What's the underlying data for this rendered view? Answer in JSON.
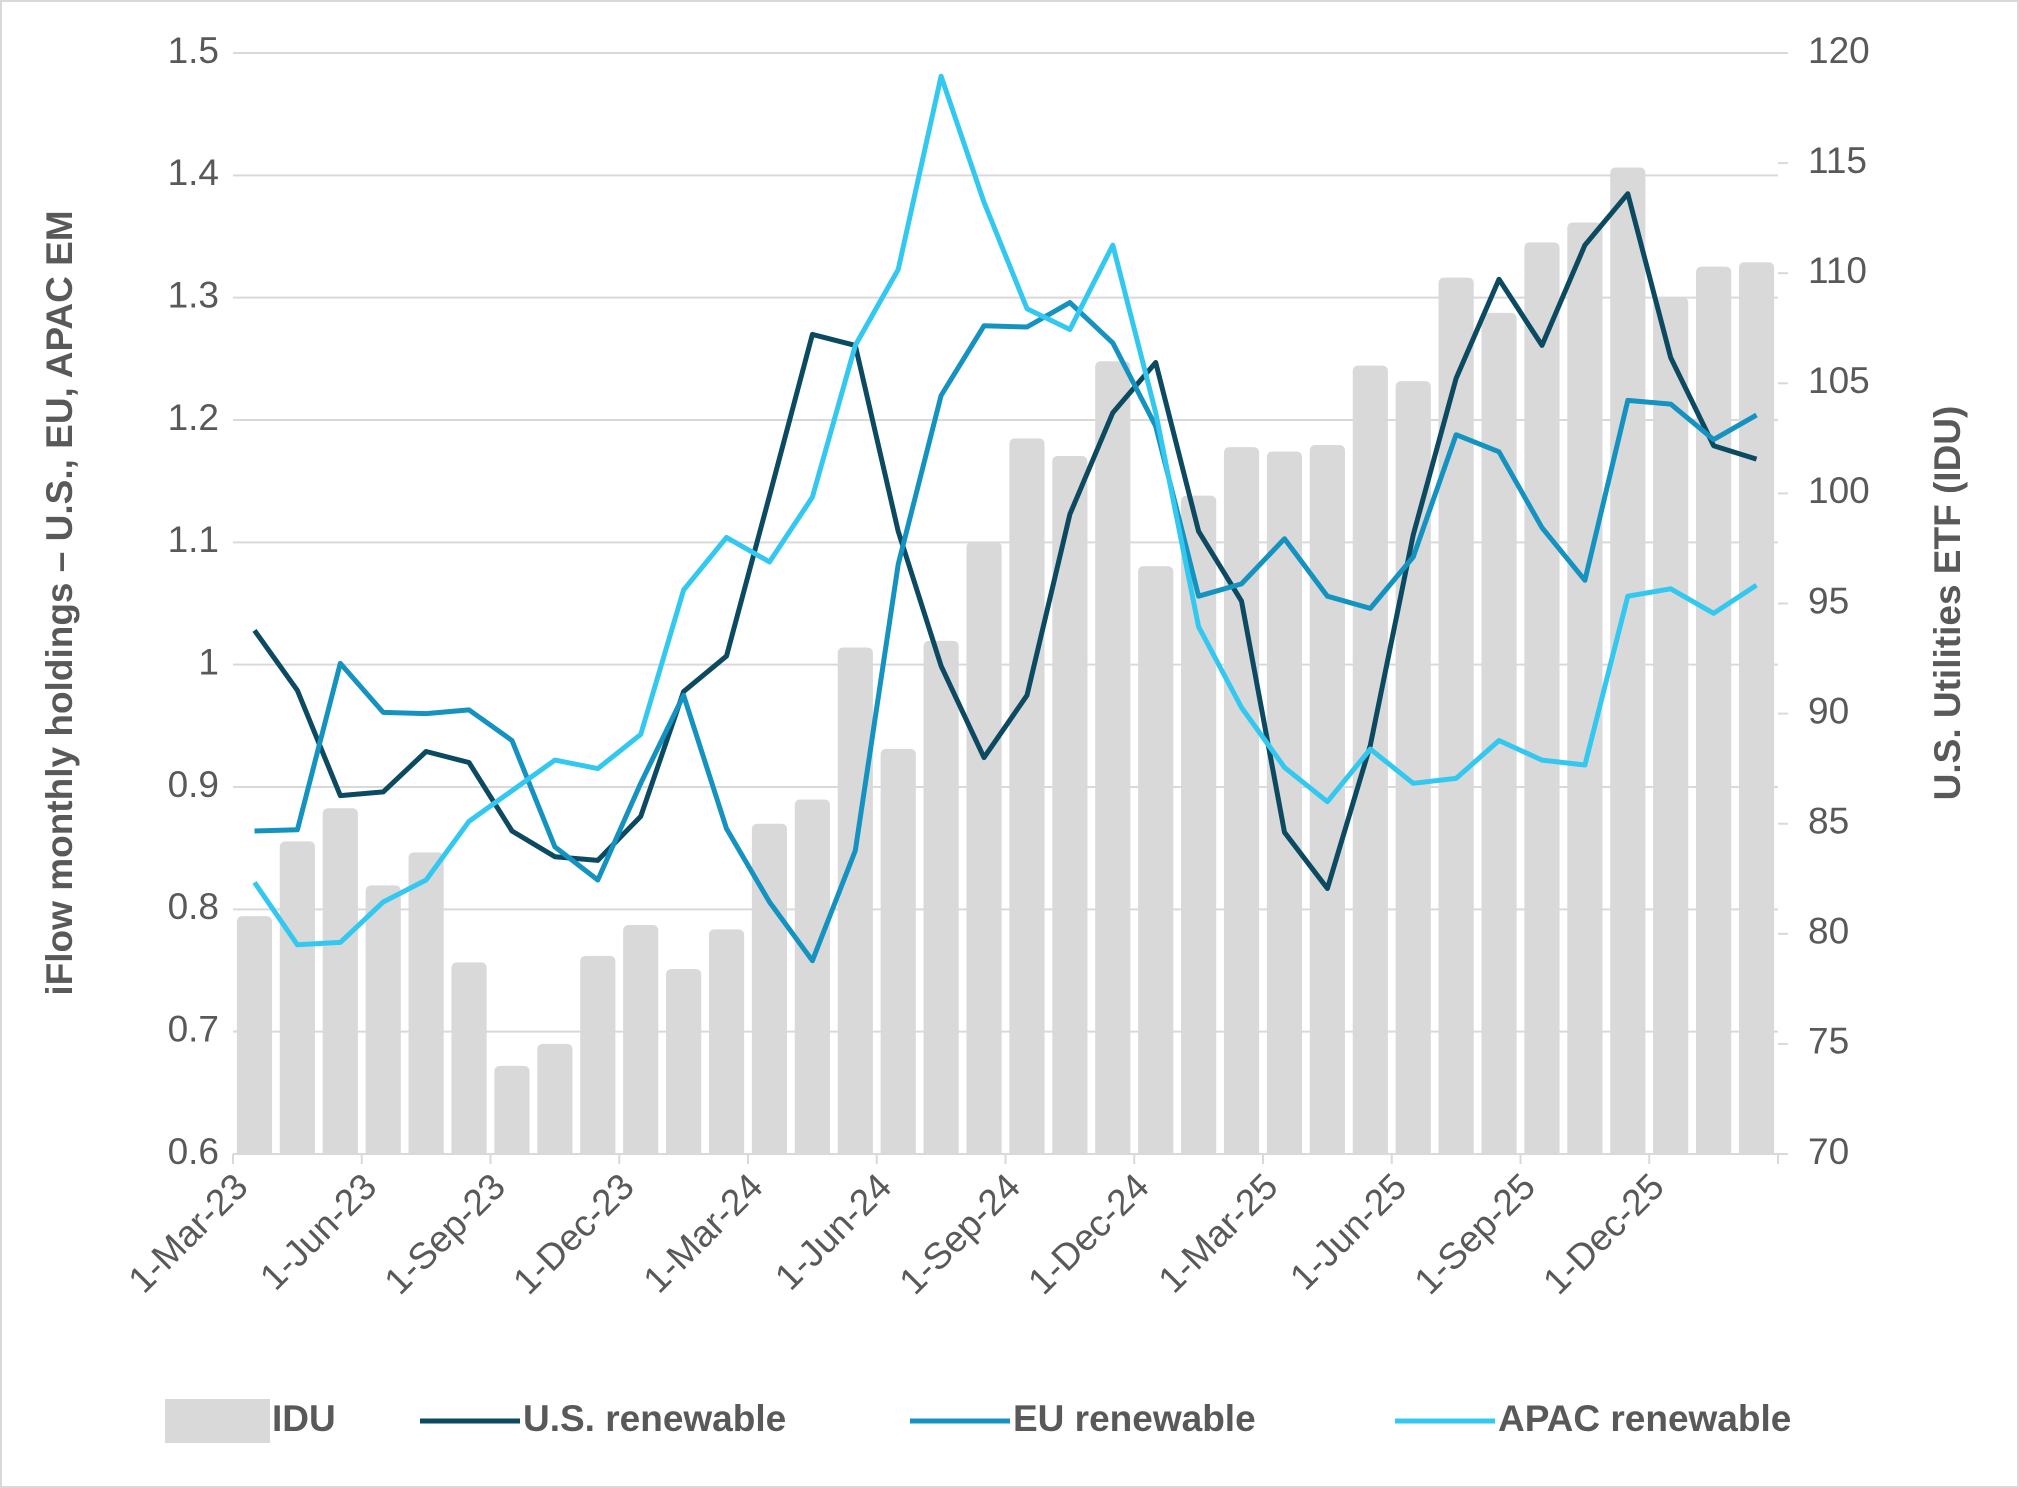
{
  "chart_data": {
    "type": "combo",
    "y_label": "iFlow monthly holdings – U.S., EU, APAC EM",
    "y2_label": "U.S. Utilities ETF (IDU)",
    "categories": [
      "1-Mar-23",
      null,
      null,
      "1-Jun-23",
      null,
      null,
      "1-Sep-23",
      null,
      null,
      "1-Dec-23",
      null,
      null,
      "1-Mar-24",
      null,
      null,
      "1-Jun-24",
      null,
      null,
      "1-Sep-24",
      null,
      null,
      "1-Dec-24",
      null,
      null,
      "1-Mar-25",
      null,
      null,
      "1-Jun-25",
      null,
      null,
      "1-Sep-25",
      null,
      null,
      "1-Dec-25",
      null,
      null
    ],
    "ylim": [
      0.6,
      1.5
    ],
    "yticks": [
      0.6,
      0.7,
      0.8,
      0.9,
      1,
      1.1,
      1.2,
      1.3,
      1.4,
      1.5
    ],
    "y2lim": [
      70,
      120
    ],
    "y2ticks": [
      70,
      75,
      80,
      85,
      90,
      95,
      100,
      105,
      110,
      115,
      120
    ],
    "grid": true,
    "legend": "bottom",
    "series": [
      {
        "name": "IDU",
        "type": "bar",
        "axis": "y2",
        "color": "#d9d9d9",
        "values": [
          80.8,
          84.2,
          85.7,
          82.2,
          83.7,
          78.7,
          74.0,
          75.0,
          79.0,
          80.4,
          78.4,
          80.2,
          85.0,
          86.1,
          93.0,
          88.4,
          93.3,
          97.8,
          102.5,
          101.7,
          106.0,
          96.7,
          99.9,
          102.1,
          101.9,
          102.2,
          105.8,
          105.1,
          109.8,
          108.2,
          111.4,
          112.3,
          114.8,
          108.9,
          110.3,
          110.5
        ]
      },
      {
        "name": "U.S. renewable",
        "type": "line",
        "color": "#0b4a60",
        "values": [
          1.028,
          0.979,
          0.893,
          0.896,
          0.929,
          0.92,
          0.864,
          0.843,
          0.84,
          0.876,
          0.978,
          1.007,
          1.138,
          1.27,
          1.261,
          1.109,
          0.999,
          0.924,
          0.975,
          1.123,
          1.206,
          1.247,
          1.109,
          1.052,
          0.863,
          0.817,
          0.934,
          1.106,
          1.234,
          1.315,
          1.261,
          1.343,
          1.385,
          1.251,
          1.179,
          1.168
        ]
      },
      {
        "name": "EU renewable",
        "type": "line",
        "color": "#1493c0",
        "values": [
          0.864,
          0.865,
          1.001,
          0.961,
          0.96,
          0.963,
          0.938,
          0.851,
          0.824,
          0.903,
          0.975,
          0.866,
          0.806,
          0.758,
          0.848,
          1.082,
          1.22,
          1.277,
          1.276,
          1.296,
          1.263,
          1.195,
          1.056,
          1.066,
          1.103,
          1.056,
          1.046,
          1.088,
          1.188,
          1.174,
          1.112,
          1.069,
          1.216,
          1.213,
          1.184,
          1.204
        ]
      },
      {
        "name": "APAC renewable",
        "type": "line",
        "color": "#33c8f0",
        "values": [
          0.822,
          0.771,
          0.773,
          0.806,
          0.824,
          0.872,
          0.897,
          0.922,
          0.915,
          0.943,
          1.061,
          1.104,
          1.084,
          1.137,
          1.261,
          1.323,
          1.481,
          1.378,
          1.291,
          1.274,
          1.343,
          1.206,
          1.031,
          0.965,
          0.916,
          0.888,
          0.931,
          0.903,
          0.907,
          0.938,
          0.922,
          0.918,
          1.056,
          1.062,
          1.042,
          1.065
        ]
      }
    ]
  }
}
